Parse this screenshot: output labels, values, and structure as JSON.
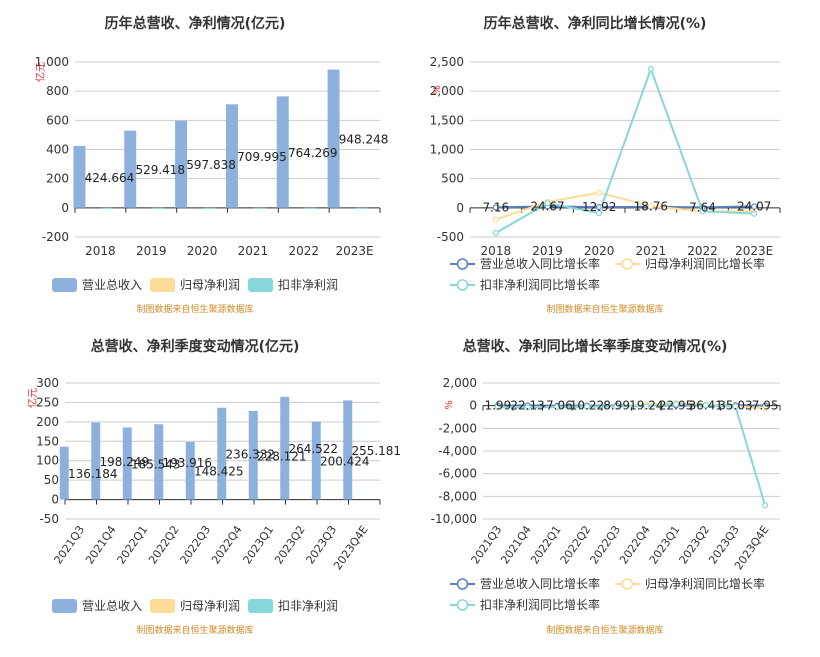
{
  "colors": {
    "revenue": "#8eb0dd",
    "net_profit": "#fddc99",
    "deducted_profit": "#86d7da",
    "source_text": "#d08a26",
    "axis_text": "#333333",
    "unit_text": "#dd3333",
    "grid": "#cccccc",
    "title": "#333333"
  },
  "chart_data": [
    {
      "type": "bar",
      "title": "历年总营收、净利情况(亿元)",
      "ylabel": "亿元",
      "categories": [
        "2018",
        "2019",
        "2020",
        "2021",
        "2022",
        "2023E"
      ],
      "ylim": [
        -200,
        1000
      ],
      "y_ticks": [
        "-200",
        "0",
        "200",
        "400",
        "600",
        "800",
        "1,000"
      ],
      "series": [
        {
          "name": "营业总收入",
          "values": [
            424.664,
            529.418,
            597.838,
            709.995,
            764.269,
            948.248
          ],
          "labels": [
            "424.664",
            "529.418",
            "597.838",
            "709.995",
            "764.269",
            "948.248"
          ]
        },
        {
          "name": "归母净利润",
          "values": [
            0,
            0,
            0,
            0,
            0,
            0
          ]
        },
        {
          "name": "扣非净利润",
          "values": [
            -3,
            -3,
            -3,
            -3,
            -3,
            -3
          ]
        }
      ],
      "legend": "bottom-left",
      "grid": true,
      "source": "制图数据来自恒生聚源数据库"
    },
    {
      "type": "line",
      "title": "历年总营收、净利同比增长情况(%)",
      "ylabel": "%",
      "categories": [
        "2018",
        "2019",
        "2020",
        "2021",
        "2022",
        "2023E"
      ],
      "ylim": [
        -500,
        2500
      ],
      "y_ticks": [
        "-500",
        "0",
        "500",
        "1,000",
        "1,500",
        "2,000",
        "2,500"
      ],
      "series": [
        {
          "name": "营业总收入同比增长率",
          "values": [
            7.16,
            24.67,
            12.92,
            18.76,
            7.64,
            24.07
          ],
          "labels": [
            "7.16",
            "24.67",
            "12.92",
            "18.76",
            "7.64",
            "24.07"
          ]
        },
        {
          "name": "归母净利润同比增长率",
          "values": [
            -200,
            100,
            260,
            30,
            -60,
            -60
          ]
        },
        {
          "name": "扣非净利润同比增长率",
          "values": [
            -430,
            80,
            -90,
            2380,
            -60,
            -100
          ]
        }
      ],
      "legend": "bottom-left",
      "grid": true,
      "source": "制图数据来自恒生聚源数据库"
    },
    {
      "type": "bar",
      "title": "总营收、净利季度变动情况(亿元)",
      "ylabel": "亿元",
      "categories": [
        "2021Q3",
        "2021Q4",
        "2022Q1",
        "2022Q2",
        "2022Q3",
        "2022Q4",
        "2023Q1",
        "2023Q2",
        "2023Q3",
        "2023Q4E"
      ],
      "ylim": [
        -50,
        300
      ],
      "y_ticks": [
        "-50",
        "0",
        "50",
        "100",
        "150",
        "200",
        "250",
        "300"
      ],
      "series": [
        {
          "name": "营业总收入",
          "values": [
            136.184,
            198.249,
            185.543,
            193.916,
            148.425,
            236.332,
            228.121,
            264.522,
            200.424,
            255.181
          ],
          "labels": [
            "136.184",
            "198.249",
            "185.543",
            "193.916",
            "148.425",
            "236.332",
            "228.121",
            "264.522",
            "200.424",
            "255.181"
          ]
        },
        {
          "name": "归母净利润",
          "values": [
            0,
            0,
            0,
            0,
            0,
            0,
            0,
            0,
            0,
            0
          ]
        },
        {
          "name": "扣非净利润",
          "values": [
            0,
            0,
            0,
            0,
            0,
            0,
            0,
            0,
            0,
            0
          ]
        }
      ],
      "legend": "bottom-left",
      "grid": true,
      "source": "制图数据来自恒生聚源数据库"
    },
    {
      "type": "line",
      "title": "总营收、净利同比增长率季度变动情况(%)",
      "ylabel": "%",
      "categories": [
        "2021Q3",
        "2021Q4",
        "2022Q1",
        "2022Q2",
        "2022Q3",
        "2022Q4",
        "2023Q1",
        "2023Q2",
        "2023Q3",
        "2023Q4E"
      ],
      "ylim": [
        -10000,
        2000
      ],
      "y_ticks": [
        "-10,000",
        "-8,000",
        "-6,000",
        "-4,000",
        "-2,000",
        "0",
        "2,000"
      ],
      "series": [
        {
          "name": "营业总收入同比增长率",
          "values": [
            1.99,
            22.13,
            -7.06,
            10.22,
            8.99,
            19.24,
            22.95,
            36.41,
            35.03,
            7.95
          ],
          "labels": [
            "1.99",
            "22.13",
            "-7.06",
            "10.22",
            "8.99",
            "19.24",
            "22.95",
            "36.41",
            "35.03",
            "7.95"
          ]
        },
        {
          "name": "归母净利润同比增长率",
          "values": [
            -100,
            -150,
            -120,
            -80,
            -60,
            100,
            250,
            100,
            -50,
            -250
          ]
        },
        {
          "name": "扣非净利润同比增长率",
          "values": [
            -120,
            -150,
            -130,
            -90,
            -70,
            -50,
            150,
            50,
            -80,
            -8800
          ]
        }
      ],
      "legend": "bottom-left",
      "grid": true,
      "source": "制图数据来自恒生聚源数据库"
    }
  ]
}
